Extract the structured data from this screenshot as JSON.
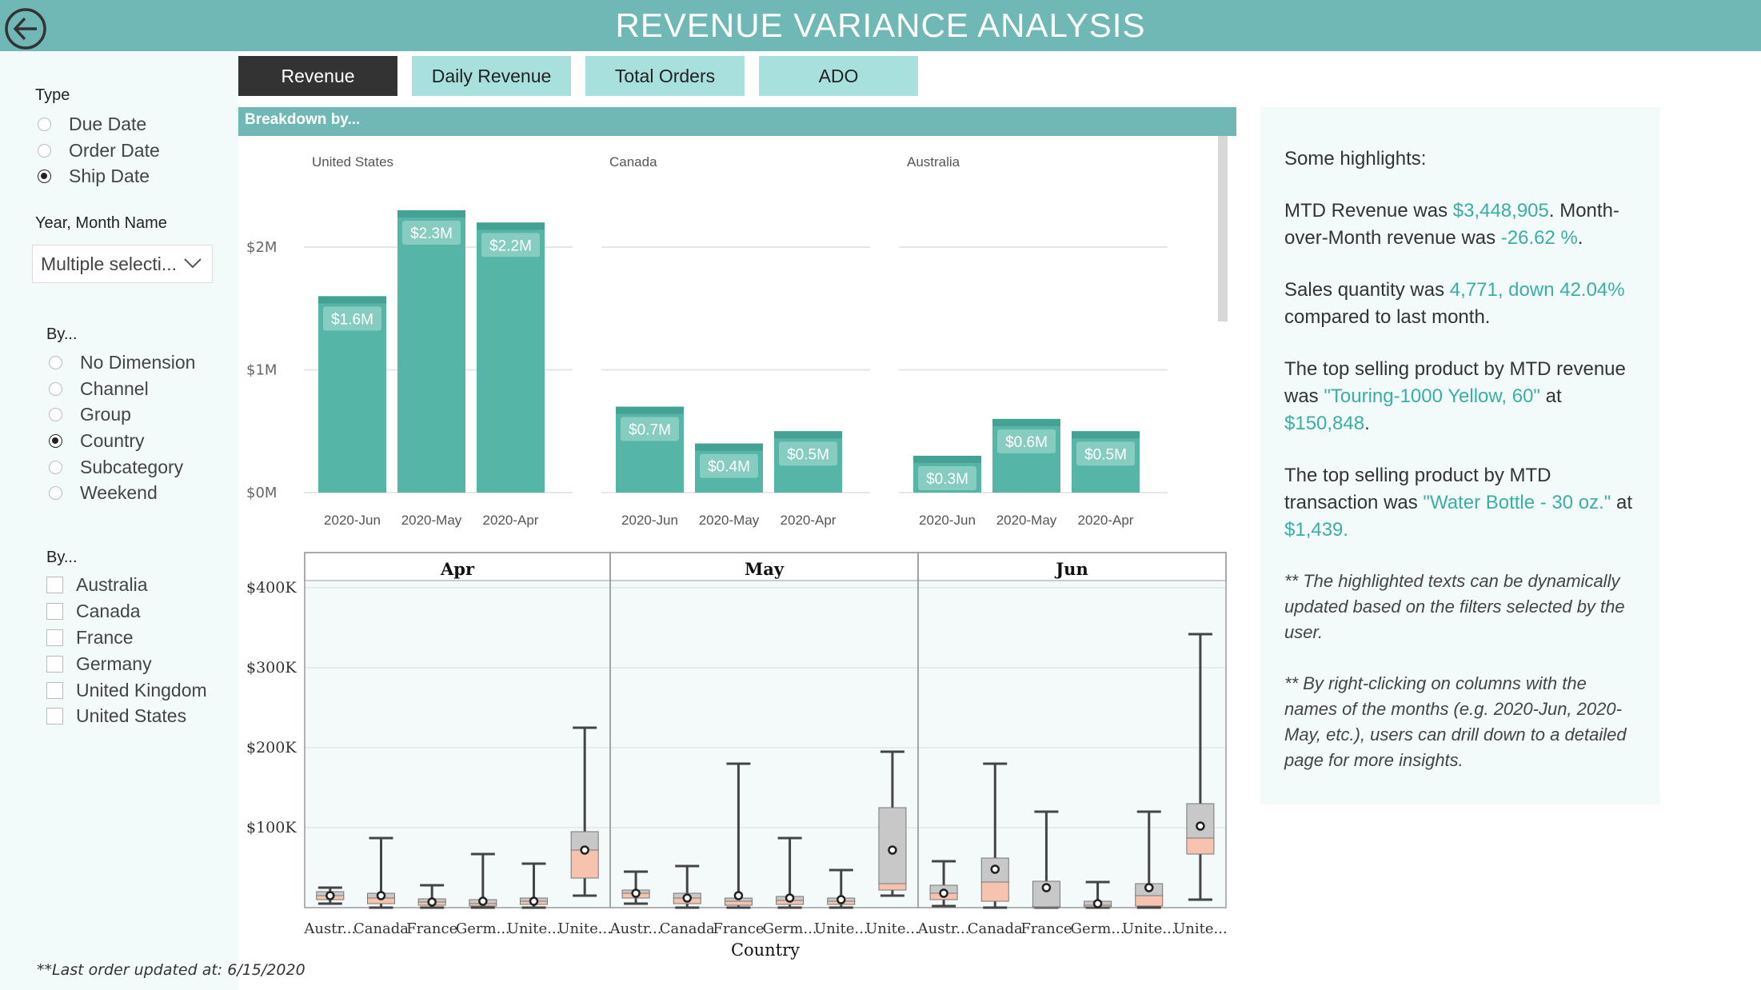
{
  "header": {
    "title": "REVENUE VARIANCE ANALYSIS",
    "back_icon": "back-arrow-circle-icon"
  },
  "tabs": [
    {
      "label": "Revenue",
      "active": true
    },
    {
      "label": "Daily Revenue",
      "active": false
    },
    {
      "label": "Total Orders",
      "active": false
    },
    {
      "label": "ADO",
      "active": false
    }
  ],
  "sidebar": {
    "type_label": "Type",
    "type_options": [
      {
        "label": "Due Date",
        "selected": false
      },
      {
        "label": "Order Date",
        "selected": false
      },
      {
        "label": "Ship Date",
        "selected": true
      }
    ],
    "year_month_label": "Year, Month Name",
    "year_month_value": "Multiple selecti...",
    "by_label": "By...",
    "by_options": [
      {
        "label": "No Dimension",
        "selected": false
      },
      {
        "label": "Channel",
        "selected": false
      },
      {
        "label": "Group",
        "selected": false
      },
      {
        "label": "Country",
        "selected": true
      },
      {
        "label": "Subcategory",
        "selected": false
      },
      {
        "label": "Weekend",
        "selected": false
      }
    ],
    "by2_label": "By...",
    "country_options": [
      {
        "label": "Australia",
        "checked": false
      },
      {
        "label": "Canada",
        "checked": false
      },
      {
        "label": "France",
        "checked": false
      },
      {
        "label": "Germany",
        "checked": false
      },
      {
        "label": "United Kingdom",
        "checked": false
      },
      {
        "label": "United States",
        "checked": false
      }
    ],
    "footnote": "**Last order updated at: 6/15/2020"
  },
  "breakdown": {
    "header": "Breakdown by..."
  },
  "highlights": {
    "heading": "Some highlights:",
    "p1_a": "MTD Revenue was ",
    "p1_v1": "$3,448,905",
    "p1_b": ". Month-over-Month revenue was ",
    "p1_v2": "-26.62 %",
    "p1_c": ".",
    "p2_a": "Sales quantity was ",
    "p2_v1": "4,771, down 42.04%",
    "p2_b": " compared to last month.",
    "p3_a": "The top selling product by MTD revenue was ",
    "p3_v1": "\"Touring-1000 Yellow, 60\"",
    "p3_b": "  at ",
    "p3_v2": "$150,848",
    "p3_c": ".",
    "p4_a": "The top selling product by MTD transaction was ",
    "p4_v1": "\"Water Bottle - 30 oz.\"",
    "p4_b": " at ",
    "p4_v2": "$1,439.",
    "note1": "** The highlighted texts can be dynamically updated based on the filters selected by the user.",
    "note2": "** By right-clicking on columns with the names of the months (e.g. 2020-Jun, 2020-May, etc.), users can drill down to a detailed page for more insights."
  },
  "colors": {
    "accent": "#6fb8b5",
    "bar": "#55b5a6",
    "tab_inactive": "#a8e0de",
    "tab_active": "#333333",
    "highlight_text": "#3aaea5",
    "box_upper": "#c8c8c8",
    "box_lower": "#f6c4ae"
  },
  "chart_data": [
    {
      "type": "bar",
      "panels": [
        {
          "name": "United States",
          "categories": [
            "2020-Jun",
            "2020-May",
            "2020-Apr"
          ],
          "values": [
            1.6,
            2.3,
            2.2
          ],
          "labels": [
            "$1.6M",
            "$2.3M",
            "$2.2M"
          ]
        },
        {
          "name": "Canada",
          "categories": [
            "2020-Jun",
            "2020-May",
            "2020-Apr"
          ],
          "values": [
            0.7,
            0.4,
            0.5
          ],
          "labels": [
            "$0.7M",
            "$0.4M",
            "$0.5M"
          ]
        },
        {
          "name": "Australia",
          "categories": [
            "2020-Jun",
            "2020-May",
            "2020-Apr"
          ],
          "values": [
            0.3,
            0.6,
            0.5
          ],
          "labels": [
            "$0.3M",
            "$0.6M",
            "$0.5M"
          ]
        }
      ],
      "y_ticks": [
        "$0M",
        "$1M",
        "$2M"
      ],
      "y_tick_values": [
        0,
        1,
        2
      ],
      "ylim": [
        0,
        2.3
      ],
      "grid": true
    },
    {
      "type": "boxplot",
      "xlabel": "Country",
      "y_ticks": [
        "$100K",
        "$200K",
        "$300K",
        "$400K"
      ],
      "y_tick_values": [
        100,
        200,
        300,
        400
      ],
      "ylim": [
        0,
        400
      ],
      "facets": [
        {
          "name": "Apr",
          "categories": [
            "Austr...",
            "Canada",
            "France",
            "Germ...",
            "Unite...",
            "Unite..."
          ],
          "boxes": [
            {
              "min": 5,
              "q1": 10,
              "median": 15,
              "q3": 20,
              "max": 25,
              "mean": 15
            },
            {
              "min": 0,
              "q1": 5,
              "median": 12,
              "q3": 18,
              "max": 87,
              "mean": 15
            },
            {
              "min": 0,
              "q1": 3,
              "median": 7,
              "q3": 11,
              "max": 28,
              "mean": 7
            },
            {
              "min": 0,
              "q1": 2,
              "median": 5,
              "q3": 10,
              "max": 67,
              "mean": 8
            },
            {
              "min": 0,
              "q1": 4,
              "median": 8,
              "q3": 12,
              "max": 55,
              "mean": 8
            },
            {
              "min": 15,
              "q1": 37,
              "median": 72,
              "q3": 95,
              "max": 225,
              "mean": 72
            }
          ]
        },
        {
          "name": "May",
          "categories": [
            "Austr...",
            "Canada",
            "France",
            "Germ...",
            "Unite...",
            "Unite..."
          ],
          "boxes": [
            {
              "min": 5,
              "q1": 12,
              "median": 18,
              "q3": 22,
              "max": 45,
              "mean": 18
            },
            {
              "min": 0,
              "q1": 5,
              "median": 12,
              "q3": 18,
              "max": 52,
              "mean": 12
            },
            {
              "min": 0,
              "q1": 3,
              "median": 8,
              "q3": 12,
              "max": 180,
              "mean": 15
            },
            {
              "min": 0,
              "q1": 4,
              "median": 9,
              "q3": 14,
              "max": 87,
              "mean": 12
            },
            {
              "min": 0,
              "q1": 4,
              "median": 8,
              "q3": 12,
              "max": 47,
              "mean": 10
            },
            {
              "min": 15,
              "q1": 22,
              "median": 30,
              "q3": 125,
              "max": 195,
              "mean": 72
            }
          ]
        },
        {
          "name": "Jun",
          "categories": [
            "Austr...",
            "Canada",
            "France",
            "Germ...",
            "Unite...",
            "Unite..."
          ],
          "boxes": [
            {
              "min": 2,
              "q1": 10,
              "median": 18,
              "q3": 28,
              "max": 58,
              "mean": 18
            },
            {
              "min": 0,
              "q1": 8,
              "median": 32,
              "q3": 62,
              "max": 180,
              "mean": 48
            },
            {
              "min": 0,
              "q1": 0,
              "median": 1,
              "q3": 33,
              "max": 120,
              "mean": 25
            },
            {
              "min": 0,
              "q1": 1,
              "median": 3,
              "q3": 8,
              "max": 32,
              "mean": 5
            },
            {
              "min": 0,
              "q1": 2,
              "median": 15,
              "q3": 30,
              "max": 120,
              "mean": 25
            },
            {
              "min": 10,
              "q1": 67,
              "median": 87,
              "q3": 130,
              "max": 342,
              "mean": 102
            }
          ]
        }
      ]
    }
  ]
}
